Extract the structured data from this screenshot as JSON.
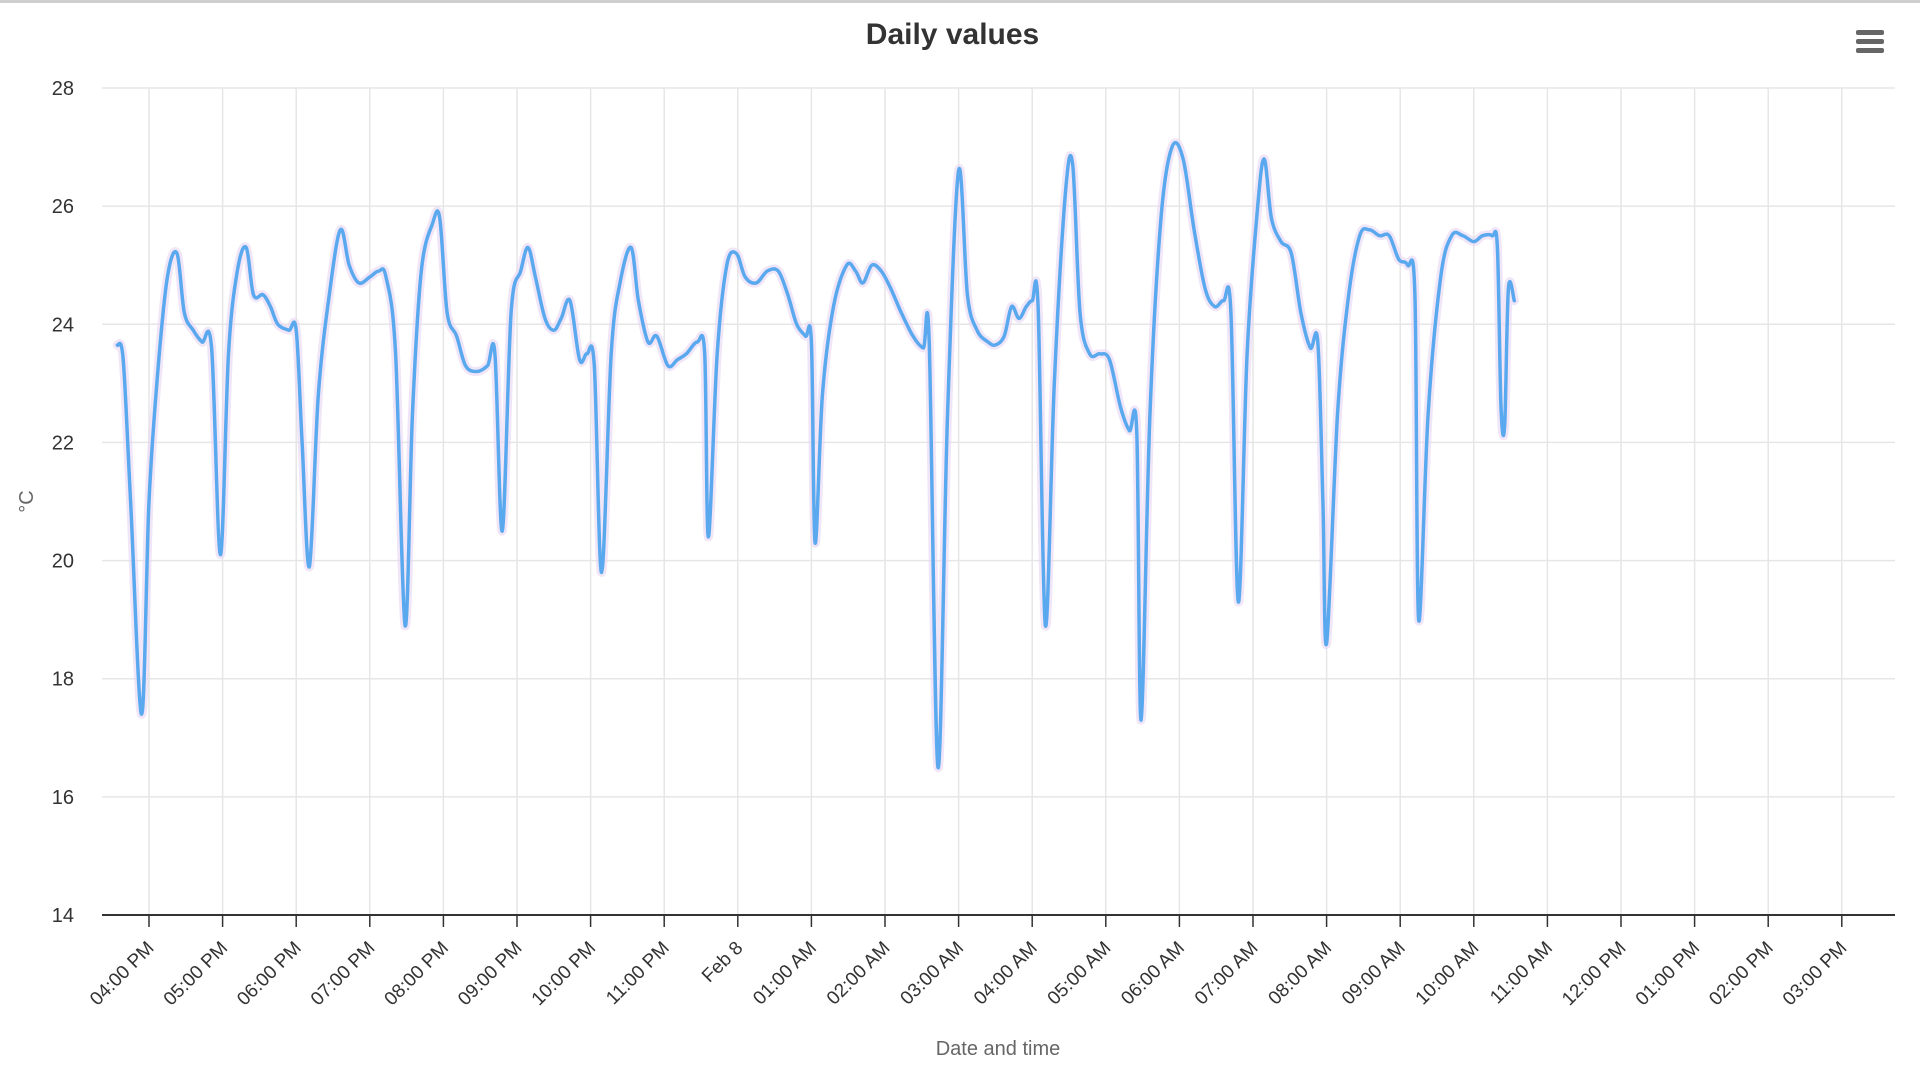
{
  "header": {
    "title": "Daily values"
  },
  "menu": {
    "icon": "hamburger-menu-icon"
  },
  "colors": {
    "line": "#5aa9ef",
    "band": "#e8d6f3",
    "grid": "#e6e6e6",
    "axis": "#333333"
  },
  "chart_data": {
    "type": "line",
    "title": "Daily values",
    "xlabel": "Date and time",
    "ylabel": "°C",
    "ylim": [
      14,
      28
    ],
    "yticks": [
      14,
      16,
      18,
      20,
      22,
      24,
      26,
      28
    ],
    "xlim": [
      -0.43,
      23.7
    ],
    "xticks": [
      {
        "x": 0,
        "label": "04:00 PM"
      },
      {
        "x": 1,
        "label": "05:00 PM"
      },
      {
        "x": 2,
        "label": "06:00 PM"
      },
      {
        "x": 3,
        "label": "07:00 PM"
      },
      {
        "x": 4,
        "label": "08:00 PM"
      },
      {
        "x": 5,
        "label": "09:00 PM"
      },
      {
        "x": 6,
        "label": "10:00 PM"
      },
      {
        "x": 7,
        "label": "11:00 PM"
      },
      {
        "x": 8,
        "label": "Feb 8"
      },
      {
        "x": 9,
        "label": "01:00 AM"
      },
      {
        "x": 10,
        "label": "02:00 AM"
      },
      {
        "x": 11,
        "label": "03:00 AM"
      },
      {
        "x": 12,
        "label": "04:00 AM"
      },
      {
        "x": 13,
        "label": "05:00 AM"
      },
      {
        "x": 14,
        "label": "06:00 AM"
      },
      {
        "x": 15,
        "label": "07:00 AM"
      },
      {
        "x": 16,
        "label": "08:00 AM"
      },
      {
        "x": 17,
        "label": "09:00 AM"
      },
      {
        "x": 18,
        "label": "10:00 AM"
      },
      {
        "x": 19,
        "label": "11:00 AM"
      },
      {
        "x": 20,
        "label": "12:00 PM"
      },
      {
        "x": 21,
        "label": "01:00 PM"
      },
      {
        "x": 22,
        "label": "02:00 PM"
      },
      {
        "x": 23,
        "label": "03:00 PM"
      }
    ],
    "grid": true,
    "legend": "none",
    "series": [
      {
        "values": [
          [
            -0.43,
            23.65
          ],
          [
            -0.35,
            23.4
          ],
          [
            -0.25,
            21.0
          ],
          [
            -0.1,
            17.4
          ],
          [
            0.0,
            21.0
          ],
          [
            0.12,
            23.2
          ],
          [
            0.25,
            24.8
          ],
          [
            0.38,
            25.2
          ],
          [
            0.48,
            24.2
          ],
          [
            0.6,
            23.9
          ],
          [
            0.72,
            23.7
          ],
          [
            0.85,
            23.6
          ],
          [
            0.97,
            20.1
          ],
          [
            1.08,
            23.5
          ],
          [
            1.2,
            24.9
          ],
          [
            1.32,
            25.3
          ],
          [
            1.42,
            24.5
          ],
          [
            1.55,
            24.5
          ],
          [
            1.65,
            24.3
          ],
          [
            1.75,
            24.0
          ],
          [
            1.9,
            23.9
          ],
          [
            2.0,
            23.9
          ],
          [
            2.08,
            22.0
          ],
          [
            2.18,
            19.9
          ],
          [
            2.3,
            22.8
          ],
          [
            2.45,
            24.5
          ],
          [
            2.6,
            25.6
          ],
          [
            2.72,
            25.0
          ],
          [
            2.85,
            24.7
          ],
          [
            3.0,
            24.8
          ],
          [
            3.12,
            24.9
          ],
          [
            3.22,
            24.8
          ],
          [
            3.35,
            23.5
          ],
          [
            3.48,
            18.9
          ],
          [
            3.58,
            22.5
          ],
          [
            3.7,
            24.9
          ],
          [
            3.85,
            25.7
          ],
          [
            3.95,
            25.8
          ],
          [
            4.05,
            24.2
          ],
          [
            4.18,
            23.8
          ],
          [
            4.3,
            23.3
          ],
          [
            4.45,
            23.2
          ],
          [
            4.6,
            23.3
          ],
          [
            4.7,
            23.5
          ],
          [
            4.8,
            20.5
          ],
          [
            4.92,
            24.2
          ],
          [
            5.05,
            24.9
          ],
          [
            5.15,
            25.3
          ],
          [
            5.25,
            24.8
          ],
          [
            5.38,
            24.1
          ],
          [
            5.5,
            23.9
          ],
          [
            5.6,
            24.1
          ],
          [
            5.72,
            24.4
          ],
          [
            5.85,
            23.4
          ],
          [
            5.95,
            23.5
          ],
          [
            6.05,
            23.3
          ],
          [
            6.15,
            19.8
          ],
          [
            6.28,
            23.5
          ],
          [
            6.4,
            24.7
          ],
          [
            6.55,
            25.3
          ],
          [
            6.65,
            24.4
          ],
          [
            6.78,
            23.7
          ],
          [
            6.9,
            23.8
          ],
          [
            7.05,
            23.3
          ],
          [
            7.18,
            23.4
          ],
          [
            7.3,
            23.5
          ],
          [
            7.45,
            23.7
          ],
          [
            7.55,
            23.5
          ],
          [
            7.6,
            20.4
          ],
          [
            7.72,
            23.5
          ],
          [
            7.85,
            25.0
          ],
          [
            7.98,
            25.2
          ],
          [
            8.1,
            24.8
          ],
          [
            8.25,
            24.7
          ],
          [
            8.4,
            24.9
          ],
          [
            8.55,
            24.9
          ],
          [
            8.68,
            24.5
          ],
          [
            8.8,
            24.0
          ],
          [
            8.92,
            23.8
          ],
          [
            9.0,
            23.7
          ],
          [
            9.05,
            20.3
          ],
          [
            9.15,
            22.8
          ],
          [
            9.3,
            24.3
          ],
          [
            9.48,
            25.0
          ],
          [
            9.6,
            24.9
          ],
          [
            9.7,
            24.7
          ],
          [
            9.82,
            25.0
          ],
          [
            9.95,
            24.9
          ],
          [
            10.08,
            24.6
          ],
          [
            10.22,
            24.2
          ],
          [
            10.38,
            23.8
          ],
          [
            10.52,
            23.6
          ],
          [
            10.6,
            23.7
          ],
          [
            10.72,
            16.5
          ],
          [
            10.85,
            22.5
          ],
          [
            11.0,
            26.6
          ],
          [
            11.12,
            24.5
          ],
          [
            11.25,
            23.9
          ],
          [
            11.4,
            23.7
          ],
          [
            11.5,
            23.65
          ],
          [
            11.62,
            23.8
          ],
          [
            11.72,
            24.3
          ],
          [
            11.82,
            24.1
          ],
          [
            11.92,
            24.3
          ],
          [
            12.0,
            24.4
          ],
          [
            12.08,
            24.3
          ],
          [
            12.18,
            18.9
          ],
          [
            12.3,
            23.0
          ],
          [
            12.45,
            26.2
          ],
          [
            12.55,
            26.7
          ],
          [
            12.65,
            24.2
          ],
          [
            12.78,
            23.5
          ],
          [
            12.92,
            23.5
          ],
          [
            13.05,
            23.4
          ],
          [
            13.2,
            22.6
          ],
          [
            13.32,
            22.2
          ],
          [
            13.42,
            22.2
          ],
          [
            13.48,
            17.3
          ],
          [
            13.6,
            22.5
          ],
          [
            13.75,
            25.8
          ],
          [
            13.9,
            27.0
          ],
          [
            14.05,
            26.8
          ],
          [
            14.2,
            25.6
          ],
          [
            14.35,
            24.6
          ],
          [
            14.48,
            24.3
          ],
          [
            14.6,
            24.4
          ],
          [
            14.7,
            24.2
          ],
          [
            14.8,
            19.3
          ],
          [
            14.92,
            23.5
          ],
          [
            15.05,
            25.8
          ],
          [
            15.15,
            26.8
          ],
          [
            15.25,
            25.8
          ],
          [
            15.38,
            25.4
          ],
          [
            15.52,
            25.2
          ],
          [
            15.65,
            24.2
          ],
          [
            15.78,
            23.6
          ],
          [
            15.88,
            23.7
          ],
          [
            15.95,
            21.0
          ],
          [
            16.0,
            18.6
          ],
          [
            16.15,
            22.5
          ],
          [
            16.3,
            24.5
          ],
          [
            16.45,
            25.5
          ],
          [
            16.58,
            25.6
          ],
          [
            16.72,
            25.5
          ],
          [
            16.85,
            25.5
          ],
          [
            16.98,
            25.1
          ],
          [
            17.1,
            25.0
          ],
          [
            17.2,
            24.5
          ],
          [
            17.25,
            19.0
          ],
          [
            17.38,
            22.5
          ],
          [
            17.55,
            24.8
          ],
          [
            17.7,
            25.5
          ],
          [
            17.85,
            25.5
          ],
          [
            18.0,
            25.4
          ],
          [
            18.12,
            25.5
          ],
          [
            18.25,
            25.5
          ],
          [
            18.32,
            25.3
          ],
          [
            18.37,
            22.6
          ],
          [
            18.42,
            22.3
          ],
          [
            18.47,
            24.6
          ],
          [
            18.55,
            24.4
          ]
        ]
      }
    ]
  }
}
